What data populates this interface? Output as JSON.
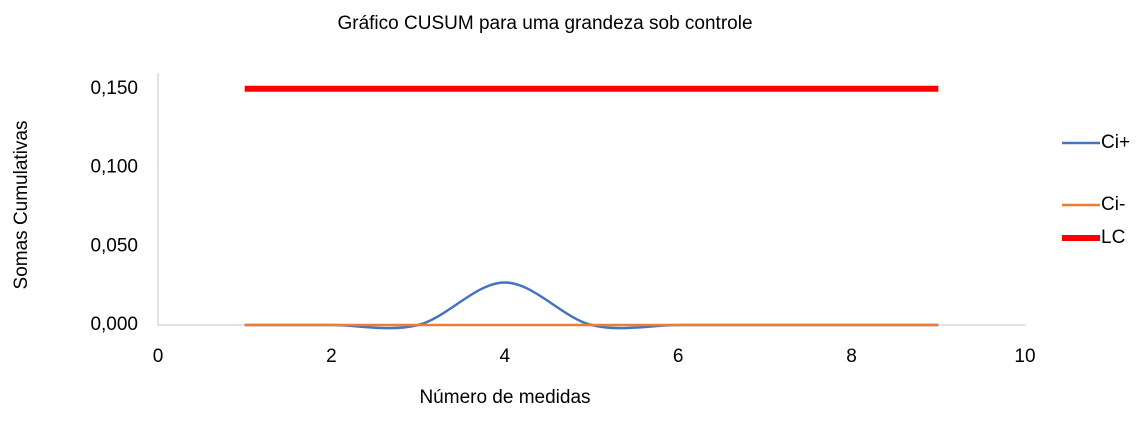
{
  "chart_data": {
    "type": "line",
    "title": "Gráfico CUSUM para uma grandeza sob controle",
    "x_label": "Número de medidas",
    "y_label": "Somas Cumulativas",
    "x": [
      1,
      2,
      3,
      4,
      5,
      6,
      7,
      8,
      9
    ],
    "series": [
      {
        "name": "Ci+",
        "color": "#4472c4",
        "width": 2.5,
        "values": [
          0,
          0,
          0,
          0.027,
          0,
          0,
          0,
          0,
          0
        ]
      },
      {
        "name": "Ci-",
        "color": "#ed7d31",
        "width": 2.5,
        "values": [
          0,
          0,
          0,
          0,
          0,
          0,
          0,
          0,
          0
        ]
      },
      {
        "name": "LC",
        "color": "#ff0000",
        "width": 6,
        "values": [
          0.15,
          0.15,
          0.15,
          0.15,
          0.15,
          0.15,
          0.15,
          0.15,
          0.15
        ]
      }
    ],
    "smooth": true,
    "xlim": [
      0,
      10
    ],
    "xticks": [
      0,
      2,
      4,
      6,
      8,
      10
    ],
    "ylim": [
      0,
      0.16
    ],
    "yticks": [
      {
        "value": 0,
        "label": "0,000"
      },
      {
        "value": 0.05,
        "label": "0,050"
      },
      {
        "value": 0.1,
        "label": "0,100"
      },
      {
        "value": 0.15,
        "label": "0,150"
      }
    ],
    "grid": false,
    "legend": "right"
  }
}
